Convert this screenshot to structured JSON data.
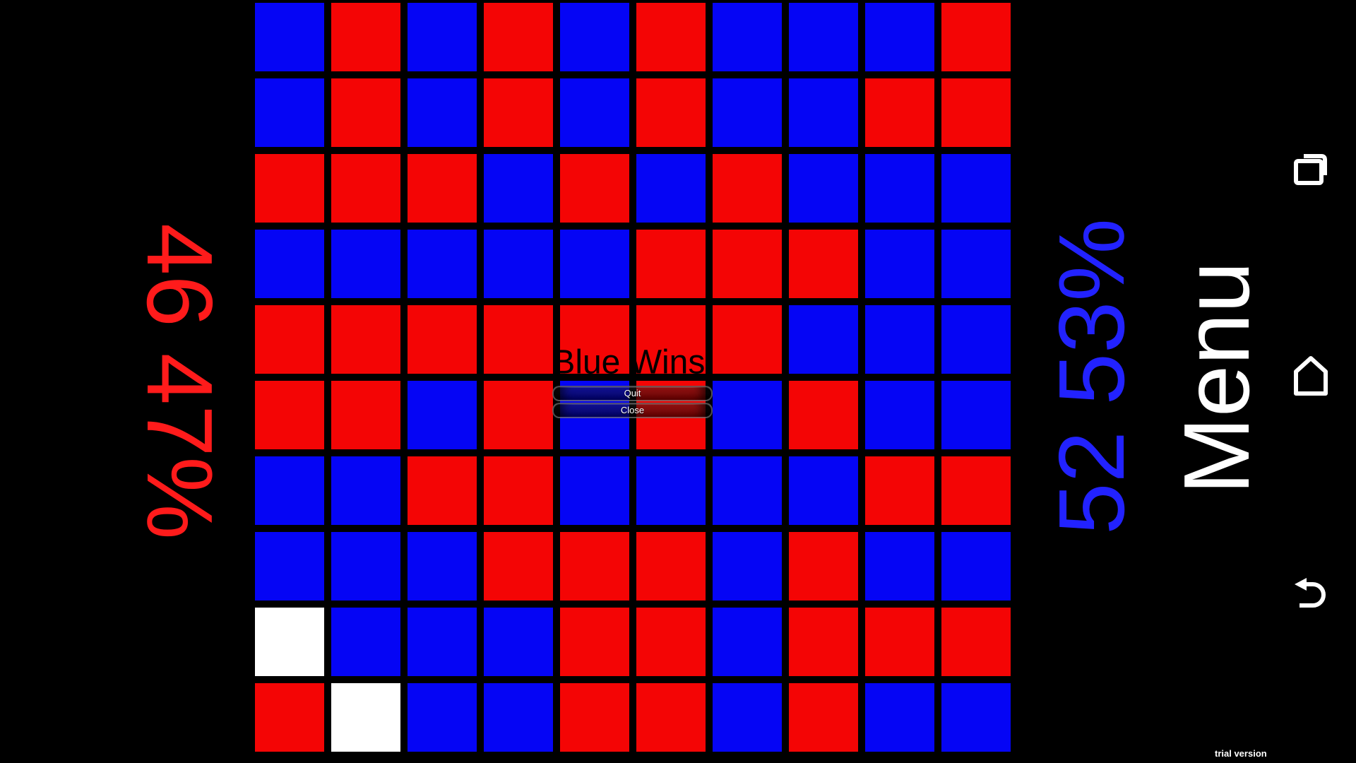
{
  "screen": {
    "background": "#000000"
  },
  "board": {
    "rows": [
      "BRBRBRBBBR",
      "BRBRBRBBRR",
      "RRRBRBRBBB",
      "BBBBBRRRBB",
      "RRRRRRRBBB",
      "RRBRBRBRBB",
      "BBRRBBBBRR",
      "BBBRRRBRBB",
      "WBBBRRBRRR",
      "RWBBRRBRBB"
    ],
    "legend": {
      "R": "red",
      "B": "blue",
      "W": "white"
    },
    "colors": {
      "R": "#f40505",
      "B": "#0505f5",
      "W": "#ffffff",
      "grid_lines": "#000000"
    }
  },
  "players": {
    "red": {
      "score": "46",
      "percent": "47%",
      "display": "46 47%",
      "color": "#ff1b1b"
    },
    "blue": {
      "score": "52",
      "percent": "53%",
      "display": "52 53%",
      "color": "#2222ff"
    }
  },
  "dialog": {
    "title": "Blue Wins!",
    "quit_label": "Quit",
    "close_label": "Close"
  },
  "menu": {
    "label": "Menu",
    "color": "#ffffff"
  },
  "nav": {
    "icons": [
      "recent-apps-icon",
      "home-icon",
      "back-icon"
    ],
    "color": "#ffffff"
  },
  "footer": {
    "trial_label": "trial version"
  }
}
